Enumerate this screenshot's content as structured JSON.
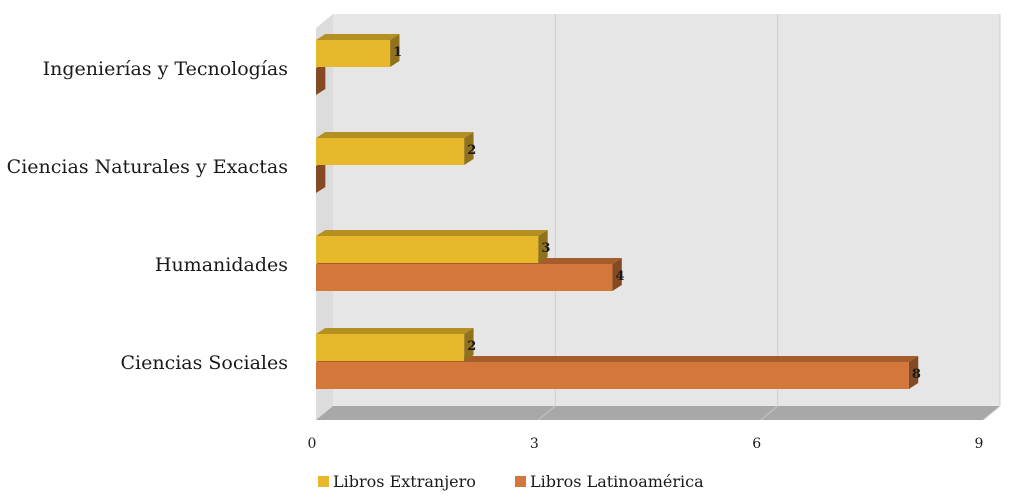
{
  "chart_data": {
    "type": "bar",
    "orientation": "horizontal",
    "three_d": true,
    "categories": [
      "Ciencias Sociales",
      "Humanidades",
      "Ciencias Naturales y Exactas",
      "Ingenierías y Tecnologías"
    ],
    "series": [
      {
        "name": "Libros Extranjero",
        "values": [
          2,
          3,
          2,
          1
        ],
        "color": "#E6B82A"
      },
      {
        "name": "Libros Latinoamérica",
        "values": [
          8,
          4,
          0,
          0
        ],
        "color": "#D4773A"
      }
    ],
    "xlim": [
      0,
      9
    ],
    "xticks": [
      "0",
      "3",
      "6",
      "9"
    ],
    "grid": true,
    "legend_position": "bottom",
    "data_labels": true
  }
}
